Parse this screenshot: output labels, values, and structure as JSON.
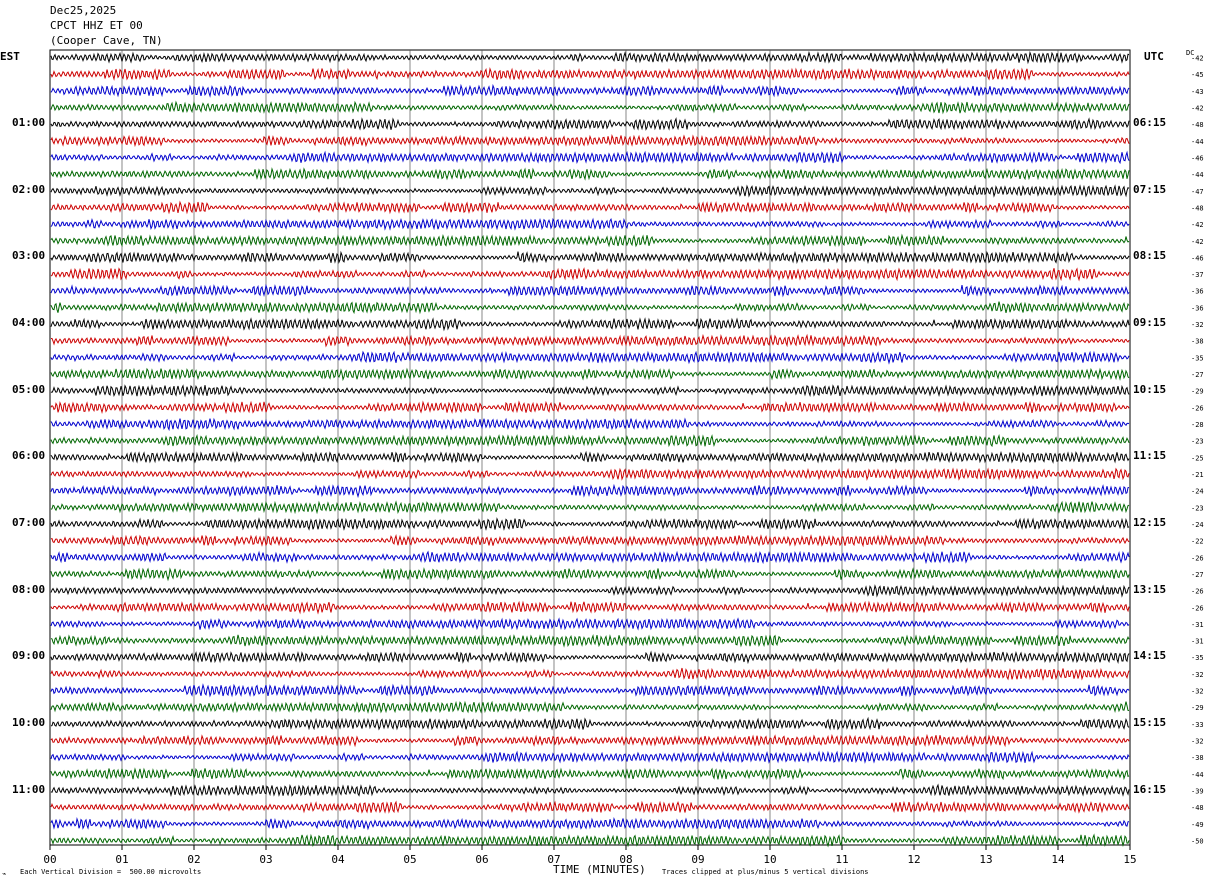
{
  "header": {
    "date": "Dec25,2025",
    "station": "CPCT HHZ ET 00",
    "location": "(Cooper Cave, TN)"
  },
  "left_axis_label": "EST",
  "right_axis_label": "UTC",
  "dc_label": "DC",
  "footer": {
    "scale_note": "Each Vertical Division =  500.00 microvolts",
    "xlabel": "TIME (MINUTES)",
    "clip_note": "Traces clipped at plus/minus 5 vertical divisions"
  },
  "chart_data": {
    "type": "line",
    "title": "CPCT HHZ ET 00",
    "xlabel": "TIME (MINUTES)",
    "xlim": [
      0,
      15
    ],
    "x_ticks": [
      "00",
      "01",
      "02",
      "03",
      "04",
      "05",
      "06",
      "07",
      "08",
      "09",
      "10",
      "11",
      "12",
      "13",
      "14",
      "15"
    ],
    "est_hour_labels": [
      "01:00",
      "02:00",
      "03:00",
      "04:00",
      "05:00",
      "06:00",
      "07:00",
      "08:00",
      "09:00",
      "10:00",
      "11:00"
    ],
    "utc_hour_labels": [
      "06:15",
      "07:15",
      "08:15",
      "09:15",
      "10:15",
      "11:15",
      "12:15",
      "13:15",
      "14:15",
      "15:15",
      "16:15"
    ],
    "trace_colors": [
      "#000000",
      "#cc0000",
      "#0000cc",
      "#006600"
    ],
    "dc_offsets": [
      -42,
      -45,
      -43,
      -42,
      -48,
      -44,
      -46,
      -44,
      -47,
      -48,
      -42,
      -42,
      -46,
      -37,
      -36,
      -36,
      -32,
      -38,
      -35,
      -27,
      -29,
      -26,
      -28,
      -23,
      -25,
      -21,
      -24,
      -23,
      -24,
      -22,
      -26,
      -27,
      -26,
      -26,
      -31,
      -31,
      -35,
      -32,
      -32,
      -29,
      -33,
      -32,
      -38,
      -44,
      -39,
      -48,
      -49,
      -50
    ],
    "grid": true
  }
}
